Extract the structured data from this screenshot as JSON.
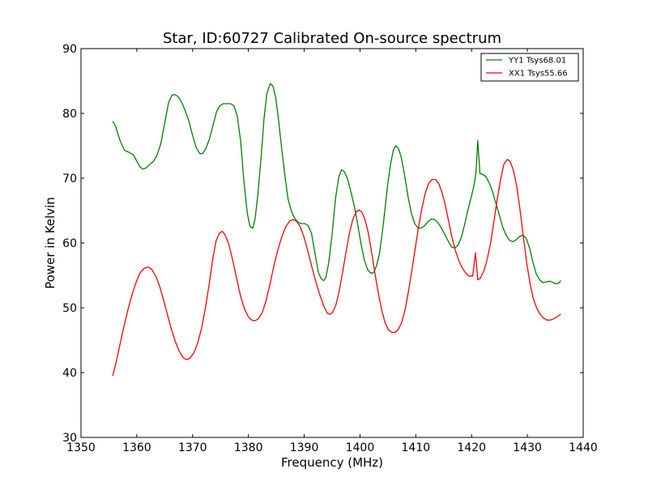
{
  "chart_data": {
    "type": "line",
    "title": "Star, ID:60727 Calibrated On-source spectrum",
    "xlabel": "Frequency (MHz)",
    "ylabel": "Power in Kelvin",
    "xlim": [
      1350,
      1440
    ],
    "ylim": [
      30,
      90
    ],
    "xticks": [
      1350,
      1360,
      1370,
      1380,
      1390,
      1400,
      1410,
      1420,
      1430,
      1440
    ],
    "yticks": [
      30,
      40,
      50,
      60,
      70,
      80,
      90
    ],
    "grid": false,
    "legend_position": "top-right",
    "series": [
      {
        "name": "YY1 Tsys68.01",
        "color": "#008000",
        "points": [
          [
            1355.7,
            78.8
          ],
          [
            1356.2,
            78.0
          ],
          [
            1357.0,
            75.8
          ],
          [
            1357.8,
            74.3
          ],
          [
            1358.6,
            74.0
          ],
          [
            1359.4,
            73.6
          ],
          [
            1360.0,
            72.6
          ],
          [
            1360.6,
            71.7
          ],
          [
            1361.1,
            71.4
          ],
          [
            1361.7,
            71.6
          ],
          [
            1362.4,
            72.2
          ],
          [
            1363.0,
            72.6
          ],
          [
            1363.6,
            73.5
          ],
          [
            1364.3,
            75.3
          ],
          [
            1365.0,
            78.5
          ],
          [
            1365.7,
            81.7
          ],
          [
            1366.3,
            82.8
          ],
          [
            1366.8,
            82.9
          ],
          [
            1367.4,
            82.6
          ],
          [
            1368.0,
            81.8
          ],
          [
            1368.6,
            80.6
          ],
          [
            1369.3,
            78.9
          ],
          [
            1370.0,
            76.6
          ],
          [
            1370.7,
            74.6
          ],
          [
            1371.3,
            73.8
          ],
          [
            1371.8,
            73.8
          ],
          [
            1372.4,
            74.6
          ],
          [
            1373.0,
            76.0
          ],
          [
            1373.7,
            78.3
          ],
          [
            1374.3,
            80.3
          ],
          [
            1374.9,
            81.2
          ],
          [
            1375.5,
            81.5
          ],
          [
            1376.1,
            81.5
          ],
          [
            1376.8,
            81.5
          ],
          [
            1377.4,
            81.2
          ],
          [
            1378.0,
            79.6
          ],
          [
            1378.6,
            75.8
          ],
          [
            1379.2,
            69.5
          ],
          [
            1379.8,
            64.6
          ],
          [
            1380.3,
            62.5
          ],
          [
            1380.8,
            62.3
          ],
          [
            1381.2,
            63.7
          ],
          [
            1381.7,
            67.5
          ],
          [
            1382.3,
            73.5
          ],
          [
            1382.8,
            79.2
          ],
          [
            1383.3,
            83.0
          ],
          [
            1383.9,
            84.6
          ],
          [
            1384.4,
            84.2
          ],
          [
            1384.9,
            82.4
          ],
          [
            1385.4,
            79.0
          ],
          [
            1386.0,
            74.3
          ],
          [
            1386.6,
            70.0
          ],
          [
            1387.1,
            66.8
          ],
          [
            1387.7,
            64.9
          ],
          [
            1388.3,
            63.8
          ],
          [
            1388.9,
            63.2
          ],
          [
            1389.5,
            63.0
          ],
          [
            1390.1,
            63.0
          ],
          [
            1390.7,
            62.7
          ],
          [
            1391.3,
            61.5
          ],
          [
            1391.9,
            58.6
          ],
          [
            1392.5,
            55.6
          ],
          [
            1393.0,
            54.5
          ],
          [
            1393.5,
            54.2
          ],
          [
            1393.9,
            54.7
          ],
          [
            1394.4,
            57.0
          ],
          [
            1395.0,
            61.3
          ],
          [
            1395.6,
            66.8
          ],
          [
            1396.2,
            70.2
          ],
          [
            1396.7,
            71.3
          ],
          [
            1397.2,
            71.0
          ],
          [
            1397.8,
            69.8
          ],
          [
            1398.4,
            67.8
          ],
          [
            1399.0,
            65.6
          ],
          [
            1399.6,
            62.8
          ],
          [
            1400.2,
            59.8
          ],
          [
            1400.8,
            57.3
          ],
          [
            1401.4,
            55.8
          ],
          [
            1402.0,
            55.3
          ],
          [
            1402.5,
            55.5
          ],
          [
            1403.0,
            56.6
          ],
          [
            1403.5,
            58.4
          ],
          [
            1404.0,
            61.6
          ],
          [
            1404.5,
            65.4
          ],
          [
            1405.0,
            69.3
          ],
          [
            1405.5,
            72.3
          ],
          [
            1406.0,
            74.4
          ],
          [
            1406.4,
            75.0
          ],
          [
            1406.9,
            74.6
          ],
          [
            1407.4,
            73.2
          ],
          [
            1408.0,
            70.4
          ],
          [
            1408.6,
            67.2
          ],
          [
            1409.2,
            64.6
          ],
          [
            1409.8,
            63.0
          ],
          [
            1410.4,
            62.3
          ],
          [
            1411.0,
            62.3
          ],
          [
            1411.6,
            62.7
          ],
          [
            1412.2,
            63.3
          ],
          [
            1412.8,
            63.7
          ],
          [
            1413.4,
            63.6
          ],
          [
            1414.0,
            63.1
          ],
          [
            1414.6,
            62.3
          ],
          [
            1415.2,
            61.3
          ],
          [
            1415.8,
            60.3
          ],
          [
            1416.4,
            59.4
          ],
          [
            1417.0,
            59.2
          ],
          [
            1417.6,
            59.7
          ],
          [
            1418.2,
            61.0
          ],
          [
            1418.8,
            63.0
          ],
          [
            1419.4,
            65.3
          ],
          [
            1420.0,
            67.3
          ],
          [
            1420.5,
            69.2
          ],
          [
            1420.8,
            71.0
          ],
          [
            1421.1,
            75.8
          ],
          [
            1421.5,
            70.7
          ],
          [
            1422.0,
            70.6
          ],
          [
            1422.6,
            70.2
          ],
          [
            1423.2,
            69.2
          ],
          [
            1423.8,
            67.8
          ],
          [
            1424.4,
            66.0
          ],
          [
            1425.0,
            64.2
          ],
          [
            1425.6,
            62.4
          ],
          [
            1426.2,
            61.2
          ],
          [
            1426.8,
            60.4
          ],
          [
            1427.4,
            60.2
          ],
          [
            1428.0,
            60.5
          ],
          [
            1428.6,
            61.0
          ],
          [
            1429.2,
            61.2
          ],
          [
            1429.8,
            60.7
          ],
          [
            1430.4,
            59.2
          ],
          [
            1431.0,
            57.0
          ],
          [
            1431.6,
            55.2
          ],
          [
            1432.2,
            54.3
          ],
          [
            1432.8,
            53.9
          ],
          [
            1433.4,
            54.0
          ],
          [
            1434.0,
            54.1
          ],
          [
            1434.6,
            53.9
          ],
          [
            1435.1,
            53.7
          ],
          [
            1435.6,
            53.8
          ],
          [
            1436.0,
            54.2
          ]
        ]
      },
      {
        "name": "XX1 Tsys55.66",
        "color": "#ff0000",
        "points": [
          [
            1355.7,
            39.5
          ],
          [
            1356.4,
            42.0
          ],
          [
            1357.1,
            44.8
          ],
          [
            1357.8,
            47.5
          ],
          [
            1358.5,
            50.0
          ],
          [
            1359.2,
            52.2
          ],
          [
            1359.9,
            54.0
          ],
          [
            1360.6,
            55.4
          ],
          [
            1361.3,
            56.1
          ],
          [
            1362.0,
            56.3
          ],
          [
            1362.7,
            55.9
          ],
          [
            1363.4,
            54.9
          ],
          [
            1364.1,
            53.3
          ],
          [
            1364.8,
            51.2
          ],
          [
            1365.5,
            48.9
          ],
          [
            1366.2,
            46.7
          ],
          [
            1366.9,
            44.8
          ],
          [
            1367.6,
            43.3
          ],
          [
            1368.3,
            42.3
          ],
          [
            1368.9,
            42.0
          ],
          [
            1369.5,
            42.2
          ],
          [
            1370.2,
            43.0
          ],
          [
            1370.9,
            44.5
          ],
          [
            1371.6,
            46.8
          ],
          [
            1372.3,
            50.0
          ],
          [
            1373.0,
            53.8
          ],
          [
            1373.6,
            57.5
          ],
          [
            1374.2,
            60.3
          ],
          [
            1374.8,
            61.5
          ],
          [
            1375.3,
            61.8
          ],
          [
            1375.8,
            61.3
          ],
          [
            1376.5,
            59.8
          ],
          [
            1377.2,
            57.3
          ],
          [
            1377.9,
            54.5
          ],
          [
            1378.6,
            51.8
          ],
          [
            1379.3,
            49.8
          ],
          [
            1380.0,
            48.6
          ],
          [
            1380.6,
            48.1
          ],
          [
            1381.2,
            48.0
          ],
          [
            1381.8,
            48.3
          ],
          [
            1382.5,
            49.3
          ],
          [
            1383.2,
            51.2
          ],
          [
            1383.9,
            53.8
          ],
          [
            1384.6,
            56.6
          ],
          [
            1385.3,
            59.0
          ],
          [
            1386.0,
            61.0
          ],
          [
            1386.7,
            62.5
          ],
          [
            1387.4,
            63.4
          ],
          [
            1388.0,
            63.6
          ],
          [
            1388.6,
            63.4
          ],
          [
            1389.3,
            62.5
          ],
          [
            1390.0,
            60.8
          ],
          [
            1390.7,
            58.6
          ],
          [
            1391.4,
            56.2
          ],
          [
            1392.1,
            54.0
          ],
          [
            1392.8,
            52.0
          ],
          [
            1393.5,
            50.3
          ],
          [
            1394.1,
            49.2
          ],
          [
            1394.6,
            49.0
          ],
          [
            1395.1,
            49.3
          ],
          [
            1395.7,
            50.5
          ],
          [
            1396.3,
            52.7
          ],
          [
            1396.9,
            55.6
          ],
          [
            1397.5,
            58.6
          ],
          [
            1398.1,
            61.5
          ],
          [
            1398.7,
            63.6
          ],
          [
            1399.3,
            64.8
          ],
          [
            1399.8,
            65.1
          ],
          [
            1400.3,
            64.8
          ],
          [
            1400.9,
            63.6
          ],
          [
            1401.5,
            61.5
          ],
          [
            1402.1,
            58.5
          ],
          [
            1402.7,
            55.2
          ],
          [
            1403.3,
            52.2
          ],
          [
            1403.9,
            49.6
          ],
          [
            1404.5,
            47.7
          ],
          [
            1405.1,
            46.6
          ],
          [
            1405.7,
            46.2
          ],
          [
            1406.3,
            46.2
          ],
          [
            1406.9,
            46.7
          ],
          [
            1407.5,
            47.8
          ],
          [
            1408.1,
            49.8
          ],
          [
            1408.7,
            52.6
          ],
          [
            1409.3,
            55.8
          ],
          [
            1409.9,
            59.2
          ],
          [
            1410.5,
            62.5
          ],
          [
            1411.1,
            65.4
          ],
          [
            1411.7,
            67.7
          ],
          [
            1412.3,
            69.2
          ],
          [
            1412.9,
            69.8
          ],
          [
            1413.5,
            69.8
          ],
          [
            1414.1,
            69.2
          ],
          [
            1414.7,
            67.8
          ],
          [
            1415.3,
            65.8
          ],
          [
            1415.9,
            63.3
          ],
          [
            1416.5,
            60.8
          ],
          [
            1417.1,
            58.8
          ],
          [
            1417.7,
            57.3
          ],
          [
            1418.3,
            56.2
          ],
          [
            1418.9,
            55.4
          ],
          [
            1419.5,
            54.9
          ],
          [
            1420.2,
            54.9
          ],
          [
            1420.7,
            58.5
          ],
          [
            1421.1,
            54.3
          ],
          [
            1421.6,
            54.6
          ],
          [
            1422.2,
            55.7
          ],
          [
            1422.8,
            57.5
          ],
          [
            1423.4,
            60.0
          ],
          [
            1424.0,
            63.3
          ],
          [
            1424.6,
            66.8
          ],
          [
            1425.2,
            69.8
          ],
          [
            1425.8,
            72.2
          ],
          [
            1426.4,
            72.9
          ],
          [
            1426.9,
            72.6
          ],
          [
            1427.5,
            71.2
          ],
          [
            1428.1,
            68.7
          ],
          [
            1428.7,
            65.0
          ],
          [
            1429.3,
            60.8
          ],
          [
            1429.9,
            56.8
          ],
          [
            1430.5,
            53.6
          ],
          [
            1431.1,
            51.3
          ],
          [
            1431.7,
            49.9
          ],
          [
            1432.3,
            49.0
          ],
          [
            1432.9,
            48.4
          ],
          [
            1433.5,
            48.1
          ],
          [
            1434.1,
            48.1
          ],
          [
            1434.7,
            48.3
          ],
          [
            1435.3,
            48.6
          ],
          [
            1436.0,
            49.0
          ]
        ]
      }
    ]
  }
}
